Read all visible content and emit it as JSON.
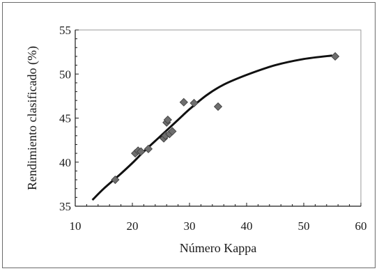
{
  "chart_data": {
    "type": "scatter",
    "title": "",
    "xlabel": "Número Kappa",
    "ylabel": "Rendimiento clasificado (%)",
    "xlim": [
      10,
      60
    ],
    "ylim": [
      35,
      55
    ],
    "x_ticks": [
      10,
      20,
      30,
      40,
      50,
      60
    ],
    "y_ticks": [
      35,
      40,
      45,
      50,
      55
    ],
    "grid": false,
    "series": [
      {
        "kind": "points",
        "marker": "diamond",
        "color": "#6e6e6e",
        "x": [
          17,
          20.5,
          21,
          21.5,
          22.8,
          25.5,
          25.8,
          26,
          26.2,
          26.5,
          27,
          29,
          30.8,
          35,
          55.5
        ],
        "y": [
          38.0,
          41.0,
          41.3,
          41.2,
          41.5,
          42.7,
          43.0,
          44.5,
          44.8,
          43.2,
          43.5,
          46.8,
          46.7,
          46.3,
          52.0
        ]
      },
      {
        "kind": "line",
        "color": "#111111",
        "x": [
          13,
          15,
          18,
          20,
          22,
          25,
          28,
          30,
          33,
          36,
          40,
          45,
          50,
          55
        ],
        "y": [
          35.7,
          37.0,
          38.7,
          39.9,
          41.2,
          43.0,
          44.8,
          46.0,
          47.6,
          48.8,
          49.9,
          51.0,
          51.7,
          52.1
        ]
      }
    ]
  }
}
